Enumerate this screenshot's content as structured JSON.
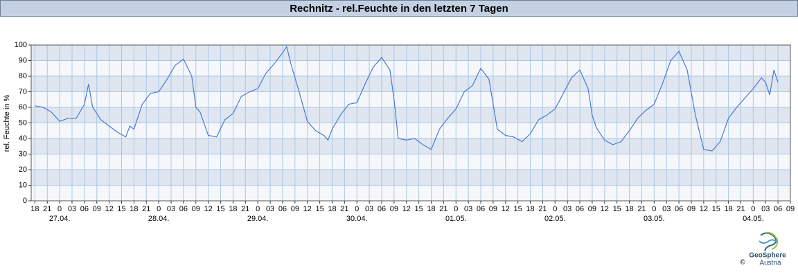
{
  "chart_data": {
    "type": "line",
    "title": "Rechnitz - rel.Feuchte in den letzten 7 Tagen",
    "y_label": "rel. Feuchte in %",
    "x": [
      -6,
      -4,
      -2,
      0,
      2,
      4,
      6,
      7,
      8,
      10,
      12,
      14,
      16,
      17,
      18,
      20,
      22,
      24,
      26,
      28,
      30,
      32,
      33,
      34,
      36,
      38,
      40,
      42,
      44,
      46,
      48,
      50,
      52,
      54,
      55,
      56,
      58,
      60,
      62,
      64,
      65,
      66,
      68,
      70,
      72,
      74,
      76,
      78,
      80,
      81,
      82,
      84,
      86,
      88,
      90,
      92,
      94,
      96,
      98,
      100,
      102,
      104,
      106,
      108,
      110,
      112,
      114,
      116,
      118,
      120,
      122,
      124,
      126,
      128,
      129,
      130,
      132,
      134,
      136,
      138,
      140,
      142,
      144,
      146,
      148,
      150,
      152,
      154,
      156,
      158,
      160,
      162,
      164,
      166,
      168,
      170,
      171,
      172,
      173,
      174
    ],
    "series": [
      {
        "name": "rel. Feuchte",
        "color": "#4a78d8",
        "values": [
          61,
          60,
          57,
          51,
          53,
          53,
          62,
          75,
          60,
          52,
          48,
          44,
          41,
          48,
          46,
          62,
          69,
          70,
          78,
          87,
          91,
          80,
          60,
          57,
          42,
          41,
          52,
          56,
          67,
          70,
          72,
          82,
          88,
          95,
          99,
          88,
          70,
          51,
          45,
          42,
          39,
          46,
          55,
          62,
          63,
          75,
          86,
          92,
          84,
          65,
          40,
          39,
          40,
          36,
          33,
          46,
          53,
          59,
          70,
          74,
          85,
          78,
          46,
          42,
          41,
          38,
          43,
          52,
          55,
          59,
          69,
          79,
          84,
          72,
          55,
          47,
          39,
          36,
          38,
          45,
          53,
          58,
          62,
          75,
          90,
          96,
          84,
          55,
          33,
          32,
          38,
          53,
          60,
          66,
          72,
          79,
          76,
          68,
          84,
          76
        ]
      }
    ],
    "xlim": [
      -6.9,
      177
    ],
    "xticks": [
      {
        "value": -6,
        "label": "18"
      },
      {
        "value": -3,
        "label": "21"
      },
      0,
      {
        "value": 3,
        "label": "03"
      },
      {
        "value": 6,
        "label": "06"
      },
      {
        "value": 9,
        "label": "09"
      },
      12,
      15,
      18,
      21,
      {
        "value": 24,
        "label": "0"
      },
      {
        "value": 27,
        "label": "03"
      },
      {
        "value": 30,
        "label": "06"
      },
      {
        "value": 33,
        "label": "09"
      },
      {
        "value": 36,
        "label": "12"
      },
      {
        "value": 39,
        "label": "15"
      },
      {
        "value": 42,
        "label": "18"
      },
      {
        "value": 45,
        "label": "21"
      },
      {
        "value": 48,
        "label": "0"
      },
      {
        "value": 51,
        "label": "03"
      },
      {
        "value": 54,
        "label": "06"
      },
      {
        "value": 57,
        "label": "09"
      },
      {
        "value": 60,
        "label": "12"
      },
      {
        "value": 63,
        "label": "15"
      },
      {
        "value": 66,
        "label": "18"
      },
      {
        "value": 69,
        "label": "21"
      },
      {
        "value": 72,
        "label": "0"
      },
      {
        "value": 75,
        "label": "03"
      },
      {
        "value": 78,
        "label": "06"
      },
      {
        "value": 81,
        "label": "09"
      },
      {
        "value": 84,
        "label": "12"
      },
      {
        "value": 87,
        "label": "15"
      },
      {
        "value": 90,
        "label": "18"
      },
      {
        "value": 93,
        "label": "21"
      },
      {
        "value": 96,
        "label": "0"
      },
      {
        "value": 99,
        "label": "03"
      },
      {
        "value": 102,
        "label": "06"
      },
      {
        "value": 105,
        "label": "09"
      },
      {
        "value": 108,
        "label": "12"
      },
      {
        "value": 111,
        "label": "15"
      },
      {
        "value": 114,
        "label": "18"
      },
      {
        "value": 117,
        "label": "21"
      },
      {
        "value": 120,
        "label": "0"
      },
      {
        "value": 123,
        "label": "03"
      },
      {
        "value": 126,
        "label": "06"
      },
      {
        "value": 129,
        "label": "09"
      },
      {
        "value": 132,
        "label": "12"
      },
      {
        "value": 135,
        "label": "15"
      },
      {
        "value": 138,
        "label": "18"
      },
      {
        "value": 141,
        "label": "21"
      },
      {
        "value": 144,
        "label": "0"
      },
      {
        "value": 147,
        "label": "03"
      },
      {
        "value": 150,
        "label": "06"
      },
      {
        "value": 153,
        "label": "09"
      },
      {
        "value": 156,
        "label": "12"
      },
      {
        "value": 159,
        "label": "15"
      },
      {
        "value": 162,
        "label": "18"
      },
      {
        "value": 165,
        "label": "21"
      },
      {
        "value": 168,
        "label": "0"
      },
      {
        "value": 171,
        "label": "03"
      },
      {
        "value": 174,
        "label": "06"
      },
      {
        "value": 177,
        "label": "09"
      }
    ],
    "xdates": [
      {
        "value": 0,
        "label": "27.04."
      },
      {
        "value": 24,
        "label": "28.04."
      },
      {
        "value": 48,
        "label": "29.04."
      },
      {
        "value": 72,
        "label": "30.04."
      },
      {
        "value": 96,
        "label": "01.05."
      },
      {
        "value": 120,
        "label": "02.05."
      },
      {
        "value": 144,
        "label": "03.05."
      },
      {
        "value": 168,
        "label": "04.05."
      }
    ],
    "ylim": [
      0,
      100
    ],
    "yticks": [
      0,
      10,
      20,
      30,
      40,
      50,
      60,
      70,
      80,
      90,
      100
    ],
    "grid": true,
    "logo": {
      "name": "GeoSphere",
      "sub": "Austria",
      "copyright": "©"
    }
  }
}
